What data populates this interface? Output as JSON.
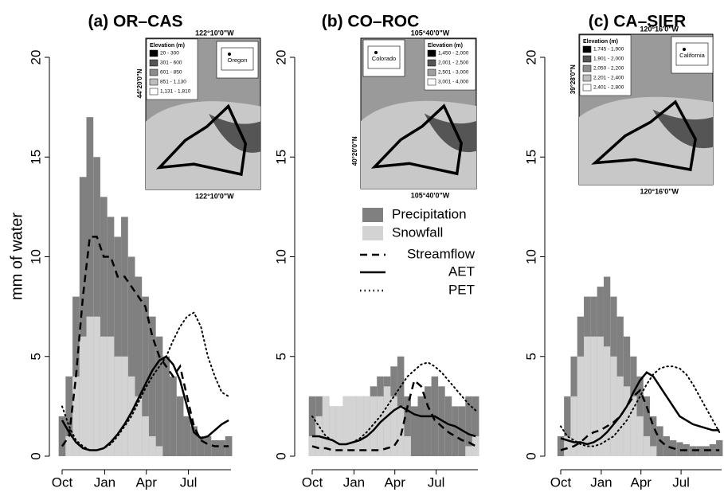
{
  "chart_data": [
    {
      "type": "timeseries",
      "title": "(a) OR–CAS",
      "y_label": "mm of water",
      "x": [
        0,
        15,
        30,
        45,
        60,
        75,
        90,
        105,
        120,
        135,
        150,
        165,
        180,
        195,
        210,
        225,
        240,
        255,
        270,
        285,
        300,
        315,
        330,
        345,
        360
      ],
      "xlim": [
        0,
        365
      ],
      "xticks": [
        {
          "value": 0,
          "label": "Oct"
        },
        {
          "value": 92,
          "label": "Jan"
        },
        {
          "value": 182,
          "label": "Apr"
        },
        {
          "value": 273,
          "label": "Jul"
        }
      ],
      "ylim": [
        0,
        20
      ],
      "yticks": [
        0,
        5,
        10,
        15,
        20
      ],
      "series": [
        {
          "kind": "bar",
          "color": "#808080",
          "values": [
            2,
            4,
            8,
            14,
            17,
            15,
            13,
            12,
            11,
            12,
            10,
            9,
            8,
            7,
            6,
            5,
            4,
            3,
            2,
            1.5,
            1,
            1,
            0.8,
            0.8,
            1
          ]
        },
        {
          "kind": "bar",
          "color": "#d3d3d3",
          "values": [
            0,
            1,
            4,
            6,
            7,
            7,
            6,
            6,
            5,
            5,
            4,
            3,
            2,
            1,
            0.5,
            0,
            0,
            0,
            0,
            0,
            0,
            0,
            0,
            0,
            0
          ]
        },
        {
          "kind": "line",
          "dash": "dashed",
          "color": "#000000",
          "values": [
            0.5,
            1,
            4,
            8,
            11,
            11,
            10,
            10,
            9,
            9,
            8.5,
            8,
            7.5,
            6,
            5,
            4.5,
            4,
            4.5,
            3,
            1.5,
            0.8,
            0.6,
            0.5,
            0.5,
            0.5
          ]
        },
        {
          "kind": "line",
          "dash": "solid",
          "color": "#000000",
          "values": [
            1.8,
            1.2,
            0.7,
            0.4,
            0.3,
            0.3,
            0.4,
            0.7,
            1.1,
            1.6,
            2.2,
            2.9,
            3.6,
            4.3,
            4.8,
            5,
            4.6,
            3.8,
            2.5,
            1.2,
            0.9,
            1,
            1.3,
            1.6,
            1.8
          ]
        },
        {
          "kind": "line",
          "dash": "dotted",
          "color": "#000000",
          "values": [
            2.5,
            1.5,
            0.8,
            0.5,
            0.3,
            0.3,
            0.4,
            0.6,
            1,
            1.5,
            2,
            2.7,
            3.4,
            4,
            4.5,
            5,
            5.8,
            6.5,
            7,
            7.2,
            6.5,
            5,
            4,
            3.2,
            3
          ]
        }
      ],
      "inset": {
        "lon_top": "122°10'0\"W",
        "lon_bottom": "122°10'0\"W",
        "lat": "44°20'0\"N",
        "legend_title": "Elevation (m)",
        "state": "Oregon",
        "classes": [
          {
            "label": "20 - 300",
            "color": "#000000"
          },
          {
            "label": "301 - 600",
            "color": "#555555"
          },
          {
            "label": "601 - 850",
            "color": "#8c8c8c"
          },
          {
            "label": "851 - 1,130",
            "color": "#bdbdbd"
          },
          {
            "label": "1,131 - 1,810",
            "color": "#ffffff"
          }
        ]
      }
    },
    {
      "type": "timeseries",
      "title": "(b) CO–ROC",
      "legend": true,
      "x": [
        0,
        15,
        30,
        45,
        60,
        75,
        90,
        105,
        120,
        135,
        150,
        165,
        180,
        195,
        210,
        225,
        240,
        255,
        270,
        285,
        300,
        315,
        330,
        345,
        360
      ],
      "xlim": [
        0,
        365
      ],
      "xticks": [
        {
          "value": 0,
          "label": "Oct"
        },
        {
          "value": 92,
          "label": "Jan"
        },
        {
          "value": 182,
          "label": "Apr"
        },
        {
          "value": 273,
          "label": "Jul"
        }
      ],
      "ylim": [
        0,
        20
      ],
      "yticks": [
        0,
        5,
        10,
        15,
        20
      ],
      "series": [
        {
          "name": "Precipitation",
          "kind": "bar",
          "color": "#808080",
          "values": [
            3,
            3,
            3,
            2.5,
            2.5,
            3,
            3,
            3,
            3,
            3.5,
            4,
            4,
            4.5,
            5,
            3,
            2.5,
            3,
            3.5,
            4,
            3.5,
            3,
            2.5,
            2.5,
            3,
            3
          ]
        },
        {
          "name": "Snowfall",
          "kind": "bar",
          "color": "#d3d3d3",
          "values": [
            1,
            2,
            3,
            2.5,
            2.5,
            3,
            3,
            3,
            3,
            3,
            3,
            3.5,
            3,
            2.5,
            1,
            0,
            0,
            0,
            0,
            0,
            0,
            0,
            0,
            0.5,
            1
          ]
        },
        {
          "name": "Streamflow",
          "kind": "line",
          "dash": "dashed",
          "color": "#000000",
          "values": [
            0.5,
            0.4,
            0.4,
            0.3,
            0.3,
            0.3,
            0.3,
            0.3,
            0.3,
            0.3,
            0.3,
            0.4,
            0.5,
            1,
            2.5,
            3.8,
            3.5,
            2.5,
            1.8,
            1.5,
            1.2,
            1,
            0.8,
            0.7,
            0.5
          ]
        },
        {
          "name": "AET",
          "kind": "line",
          "dash": "solid",
          "color": "#000000",
          "values": [
            1,
            1,
            0.9,
            0.8,
            0.6,
            0.6,
            0.7,
            0.8,
            1,
            1.3,
            1.7,
            2,
            2.3,
            2.5,
            2.3,
            2.1,
            2,
            2,
            2,
            1.8,
            1.6,
            1.5,
            1.3,
            1.1,
            1
          ]
        },
        {
          "name": "PET",
          "kind": "line",
          "dash": "dotted",
          "color": "#000000",
          "values": [
            2,
            1.5,
            1,
            0.8,
            0.6,
            0.6,
            0.7,
            0.9,
            1.2,
            1.6,
            2,
            2.5,
            3,
            3.5,
            4,
            4.3,
            4.6,
            4.7,
            4.5,
            4.2,
            3.8,
            3.4,
            3,
            2.6,
            2.3
          ]
        }
      ],
      "inset": {
        "lon_top": "105°40'0\"W",
        "lon_bottom": "105°40'0\"W",
        "lat": "40°20'0\"N",
        "legend_title": "Elevation (m)",
        "state": "Colorado",
        "classes": [
          {
            "label": "1,450 - 2,000",
            "color": "#000000"
          },
          {
            "label": "2,001 - 2,500",
            "color": "#555555"
          },
          {
            "label": "2,501 - 3,000",
            "color": "#a0a0a0"
          },
          {
            "label": "3,001 - 4,000",
            "color": "#ffffff"
          }
        ]
      }
    },
    {
      "type": "timeseries",
      "title": "(c) CA–SIER",
      "x": [
        0,
        15,
        30,
        45,
        60,
        75,
        90,
        105,
        120,
        135,
        150,
        165,
        180,
        195,
        210,
        225,
        240,
        255,
        270,
        285,
        300,
        315,
        330,
        345,
        360
      ],
      "xlim": [
        0,
        365
      ],
      "xticks": [
        {
          "value": 0,
          "label": "Oct"
        },
        {
          "value": 92,
          "label": "Jan"
        },
        {
          "value": 182,
          "label": "Apr"
        },
        {
          "value": 273,
          "label": "Jul"
        }
      ],
      "ylim": [
        0,
        20
      ],
      "yticks": [
        0,
        5,
        10,
        15,
        20
      ],
      "series": [
        {
          "kind": "bar",
          "color": "#808080",
          "values": [
            1,
            3,
            5,
            7,
            8,
            8,
            8.5,
            9,
            8,
            7,
            6,
            5,
            4,
            3,
            2,
            1.5,
            1,
            0.8,
            0.7,
            0.6,
            0.5,
            0.5,
            0.5,
            0.6,
            0.8
          ]
        },
        {
          "kind": "bar",
          "color": "#d3d3d3",
          "values": [
            0,
            1,
            3,
            5,
            6,
            6,
            6,
            5.5,
            5,
            4,
            3.5,
            3,
            2,
            1,
            0.5,
            0,
            0,
            0,
            0,
            0,
            0,
            0,
            0,
            0,
            0
          ]
        },
        {
          "kind": "line",
          "dash": "dashed",
          "color": "#000000",
          "values": [
            0.3,
            0.4,
            0.5,
            0.7,
            1,
            1.2,
            1.3,
            1.5,
            1.7,
            2,
            2.5,
            3,
            3.3,
            2.5,
            1.5,
            0.8,
            0.5,
            0.4,
            0.3,
            0.3,
            0.3,
            0.3,
            0.3,
            0.3,
            0.3
          ]
        },
        {
          "kind": "line",
          "dash": "solid",
          "color": "#000000",
          "values": [
            0.9,
            0.8,
            0.7,
            0.7,
            0.6,
            0.7,
            0.9,
            1.2,
            1.6,
            2,
            2.5,
            3.2,
            3.8,
            4.2,
            4,
            3.5,
            3,
            2.5,
            2,
            1.8,
            1.6,
            1.5,
            1.4,
            1.3,
            1.3
          ]
        },
        {
          "kind": "line",
          "dash": "dotted",
          "color": "#000000",
          "values": [
            1.5,
            1,
            0.8,
            0.6,
            0.5,
            0.5,
            0.6,
            0.8,
            1,
            1.4,
            1.8,
            2.4,
            3,
            3.6,
            4.1,
            4.4,
            4.5,
            4.5,
            4.4,
            4.1,
            3.6,
            3,
            2.4,
            1.8,
            1.2
          ]
        }
      ],
      "inset": {
        "lon_top": "120°16'0\"W",
        "lon_bottom": "120°16'0\"W",
        "lat": "39°28'0\"N",
        "legend_title": "Elevation (m)",
        "state": "California",
        "classes": [
          {
            "label": "1,745 - 1,900",
            "color": "#000000"
          },
          {
            "label": "1,901 - 2,000",
            "color": "#555555"
          },
          {
            "label": "2,050 - 2,200",
            "color": "#8c8c8c"
          },
          {
            "label": "2,201 - 2,400",
            "color": "#bdbdbd"
          },
          {
            "label": "2,401 - 2,800",
            "color": "#ffffff"
          }
        ]
      }
    }
  ]
}
